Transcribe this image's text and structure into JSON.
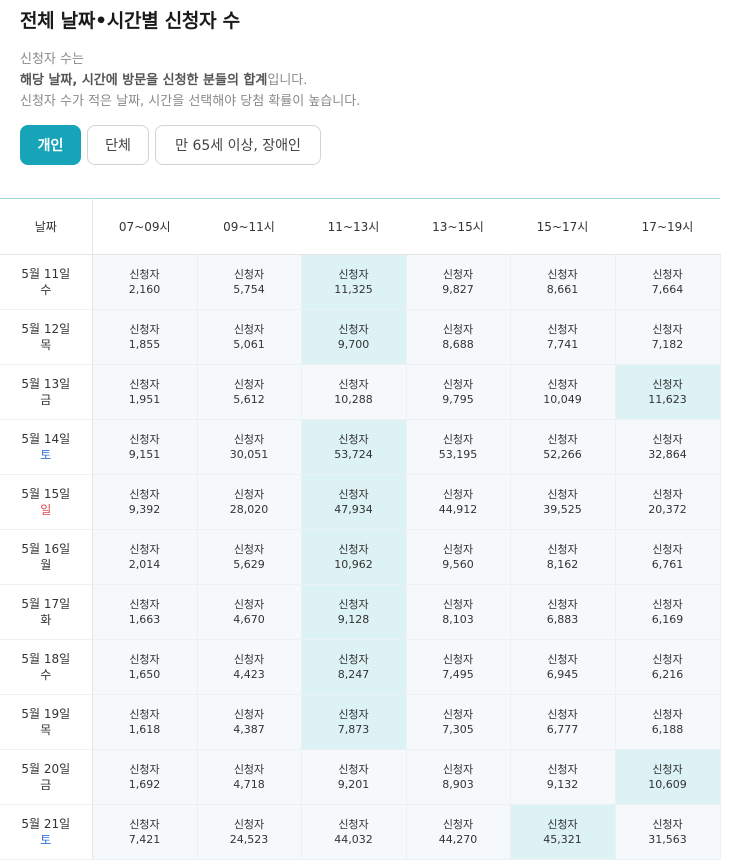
{
  "title": "전체 날짜•시간별 신청자 수",
  "description": {
    "line1": "신청자 수는",
    "line2_bold1": "해당 날짜, 시간에 방문을 신청한 분들의 합계",
    "line2_tail": "입니다.",
    "line3": "신청자 수가 적은 날짜, 시간을 선택해야 당첨 확률이 높습니다."
  },
  "tabs": [
    {
      "label": "개인",
      "active": true
    },
    {
      "label": "단체",
      "active": false
    },
    {
      "label": "만 65세 이상, 장애인",
      "active": false
    }
  ],
  "table": {
    "date_header": "날짜",
    "time_headers": [
      "07~09시",
      "09~11시",
      "11~13시",
      "13~15시",
      "15~17시",
      "17~19시"
    ],
    "cell_label": "신청자",
    "rows": [
      {
        "date": "5월 11일",
        "dow": "수",
        "dow_type": "weekday",
        "values": [
          "2,160",
          "5,754",
          "11,325",
          "9,827",
          "8,661",
          "7,664"
        ],
        "highlight": 2
      },
      {
        "date": "5월 12일",
        "dow": "목",
        "dow_type": "weekday",
        "values": [
          "1,855",
          "5,061",
          "9,700",
          "8,688",
          "7,741",
          "7,182"
        ],
        "highlight": 2
      },
      {
        "date": "5월 13일",
        "dow": "금",
        "dow_type": "weekday",
        "values": [
          "1,951",
          "5,612",
          "10,288",
          "9,795",
          "10,049",
          "11,623"
        ],
        "highlight": 5
      },
      {
        "date": "5월 14일",
        "dow": "토",
        "dow_type": "sat",
        "values": [
          "9,151",
          "30,051",
          "53,724",
          "53,195",
          "52,266",
          "32,864"
        ],
        "highlight": 2
      },
      {
        "date": "5월 15일",
        "dow": "일",
        "dow_type": "sun",
        "values": [
          "9,392",
          "28,020",
          "47,934",
          "44,912",
          "39,525",
          "20,372"
        ],
        "highlight": 2
      },
      {
        "date": "5월 16일",
        "dow": "월",
        "dow_type": "weekday",
        "values": [
          "2,014",
          "5,629",
          "10,962",
          "9,560",
          "8,162",
          "6,761"
        ],
        "highlight": 2
      },
      {
        "date": "5월 17일",
        "dow": "화",
        "dow_type": "weekday",
        "values": [
          "1,663",
          "4,670",
          "9,128",
          "8,103",
          "6,883",
          "6,169"
        ],
        "highlight": 2
      },
      {
        "date": "5월 18일",
        "dow": "수",
        "dow_type": "weekday",
        "values": [
          "1,650",
          "4,423",
          "8,247",
          "7,495",
          "6,945",
          "6,216"
        ],
        "highlight": 2
      },
      {
        "date": "5월 19일",
        "dow": "목",
        "dow_type": "weekday",
        "values": [
          "1,618",
          "4,387",
          "7,873",
          "7,305",
          "6,777",
          "6,188"
        ],
        "highlight": 2
      },
      {
        "date": "5월 20일",
        "dow": "금",
        "dow_type": "weekday",
        "values": [
          "1,692",
          "4,718",
          "9,201",
          "8,903",
          "9,132",
          "10,609"
        ],
        "highlight": 5
      },
      {
        "date": "5월 21일",
        "dow": "토",
        "dow_type": "sat",
        "values": [
          "7,421",
          "24,523",
          "44,032",
          "44,270",
          "45,321",
          "31,563"
        ],
        "highlight": 4
      }
    ]
  },
  "colors": {
    "accent": "#17a3b8",
    "highlight_cell": "#dcf2f4",
    "cell_bg": "#f6f9fc",
    "saturday": "#2f6fd6",
    "sunday": "#e04848"
  }
}
